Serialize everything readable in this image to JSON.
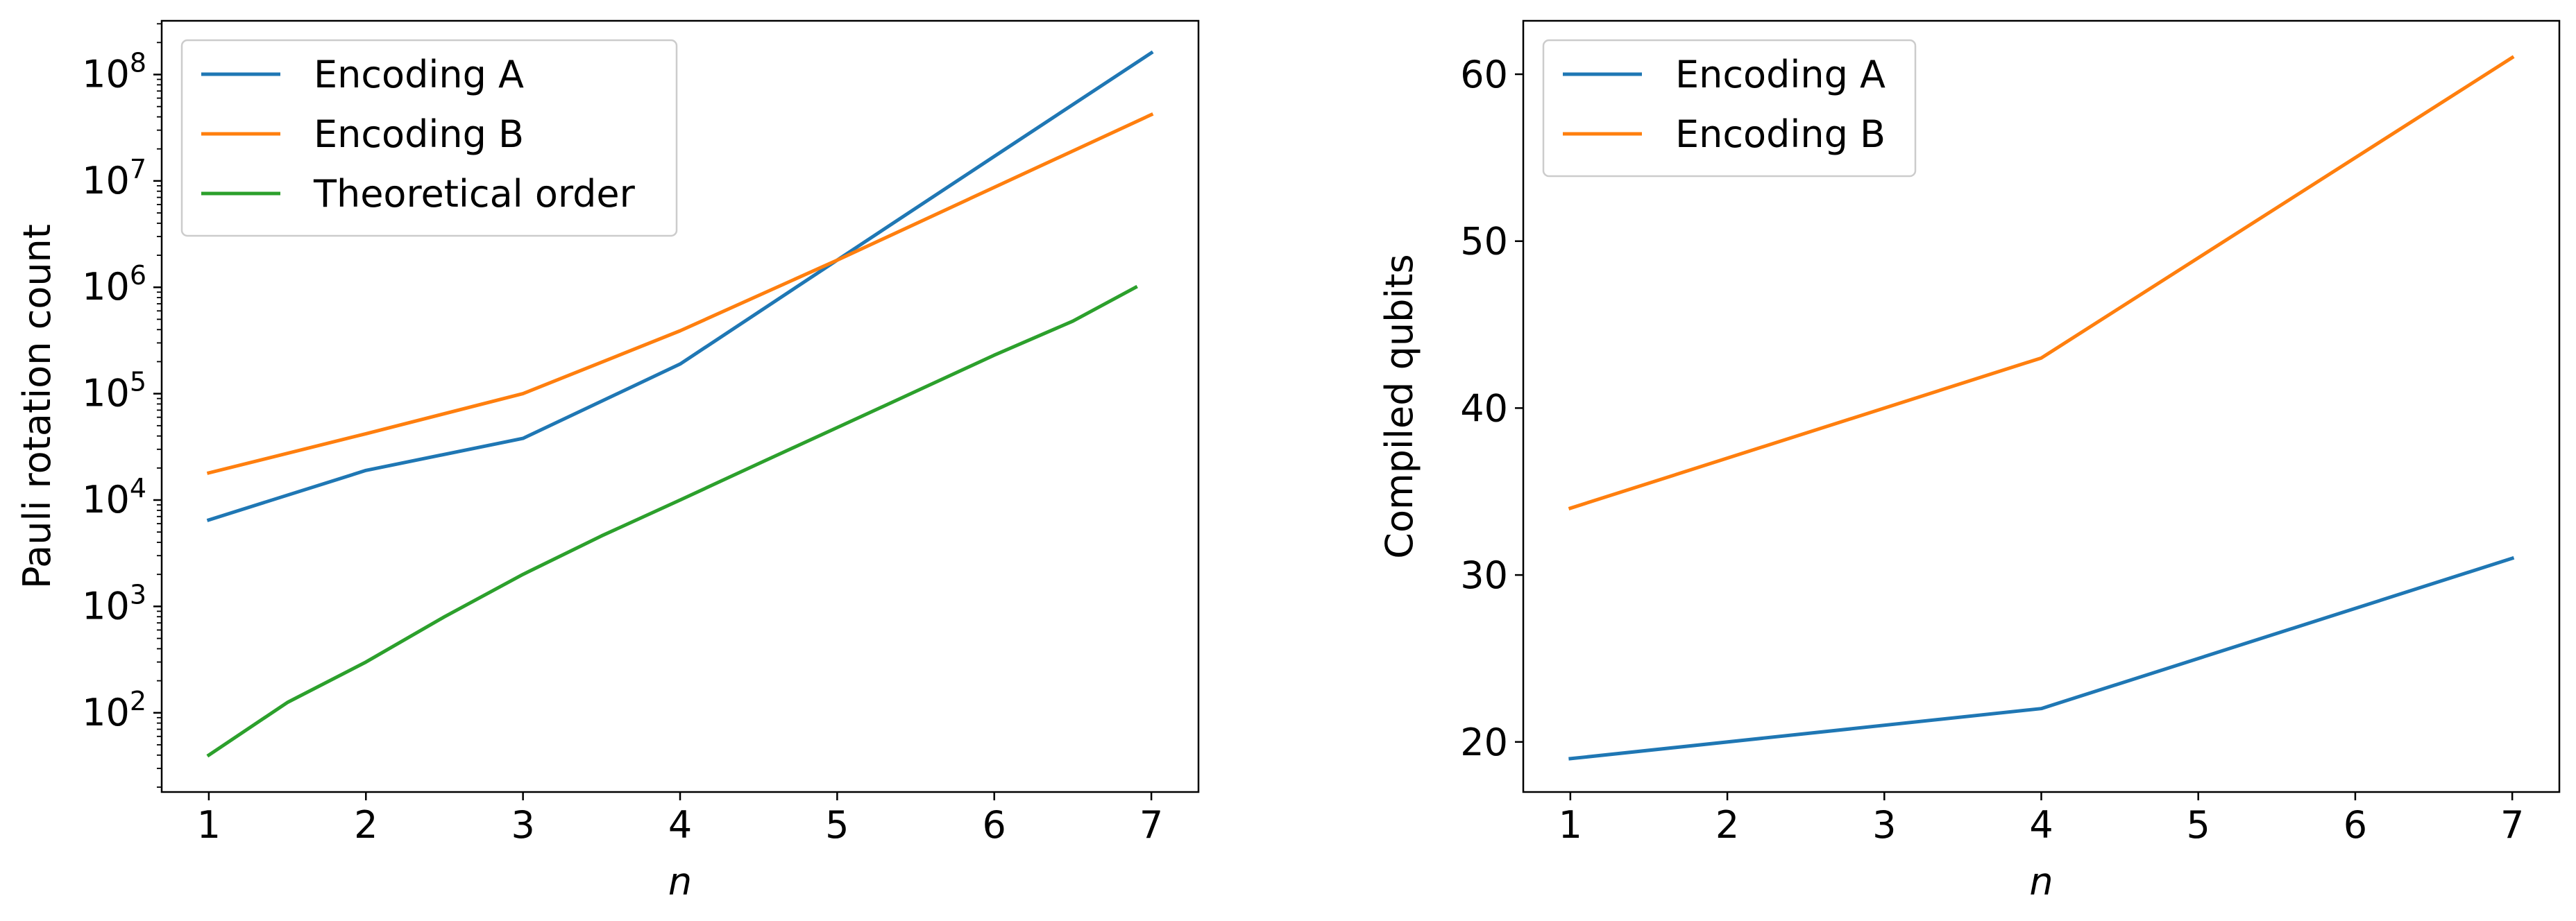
{
  "chart_data": [
    {
      "type": "line",
      "xlabel": "n",
      "ylabel": "Pauli rotation count",
      "yscale": "log",
      "xlim": [
        0.7,
        7.3
      ],
      "ylim": [
        18,
        320000000
      ],
      "x_ticks": [
        1,
        2,
        3,
        4,
        5,
        6,
        7
      ],
      "y_ticks": [
        {
          "value": 100,
          "base": "10",
          "exp": "2"
        },
        {
          "value": 1000,
          "base": "10",
          "exp": "3"
        },
        {
          "value": 10000,
          "base": "10",
          "exp": "4"
        },
        {
          "value": 100000,
          "base": "10",
          "exp": "5"
        },
        {
          "value": 1000000,
          "base": "10",
          "exp": "6"
        },
        {
          "value": 10000000,
          "base": "10",
          "exp": "7"
        },
        {
          "value": 100000000,
          "base": "10",
          "exp": "8"
        }
      ],
      "grid": false,
      "legend_position": "top-left",
      "series": [
        {
          "name": "Encoding A",
          "color": "#1f77b4",
          "x": [
            1,
            2,
            3,
            4,
            5,
            6,
            7
          ],
          "y": [
            6500,
            19000,
            38000,
            190000,
            1800000,
            17000000,
            160000000
          ]
        },
        {
          "name": "Encoding B",
          "color": "#ff7f0e",
          "x": [
            1,
            2,
            3,
            4,
            5,
            6,
            7
          ],
          "y": [
            18000,
            42000,
            100000,
            390000,
            1800000,
            8700000,
            42000000
          ]
        },
        {
          "name": "Theoretical order",
          "color": "#2ca02c",
          "x": [
            1,
            1.5,
            2,
            2.5,
            3,
            3.5,
            4,
            4.5,
            5,
            5.5,
            6,
            6.5,
            6.9
          ],
          "y": [
            40,
            125,
            300,
            800,
            2000,
            4600,
            10000,
            22000,
            48000,
            105000,
            230000,
            480000,
            1000000
          ]
        }
      ]
    },
    {
      "type": "line",
      "xlabel": "n",
      "ylabel": "Compiled qubits",
      "xlim": [
        0.7,
        7.3
      ],
      "ylim": [
        17,
        63.2
      ],
      "x_ticks": [
        1,
        2,
        3,
        4,
        5,
        6,
        7
      ],
      "y_ticks": [
        20,
        30,
        40,
        50,
        60
      ],
      "grid": false,
      "legend_position": "top-left",
      "series": [
        {
          "name": "Encoding A",
          "color": "#1f77b4",
          "x": [
            1,
            4,
            7
          ],
          "y": [
            19,
            22,
            31
          ]
        },
        {
          "name": "Encoding B",
          "color": "#ff7f0e",
          "x": [
            1,
            4,
            7
          ],
          "y": [
            34,
            43,
            61
          ]
        }
      ]
    }
  ]
}
